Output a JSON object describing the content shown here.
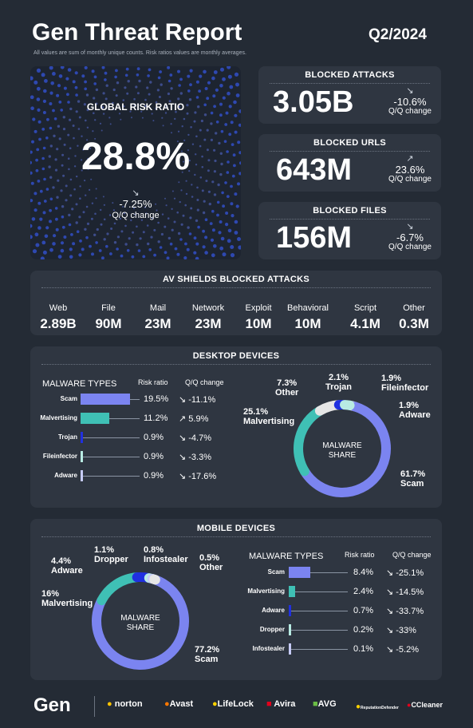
{
  "header": {
    "title": "Gen Threat Report",
    "quarter": "Q2/2024",
    "note": "All values are sum of monthly unique counts. Risk ratios values are monthly averages."
  },
  "risk": {
    "label": "GLOBAL RISK RATIO",
    "value": "28.8%",
    "change": "-7.25%",
    "change_label": "Q/Q change"
  },
  "stats": [
    {
      "label": "BLOCKED ATTACKS",
      "value": "3.05B",
      "change": "-10.6%",
      "change_label": "Q/Q change",
      "trend": "down"
    },
    {
      "label": "BLOCKED URLS",
      "value": "643M",
      "change": "23.6%",
      "change_label": "Q/Q change",
      "trend": "up"
    },
    {
      "label": "BLOCKED FILES",
      "value": "156M",
      "change": "-6.7%",
      "change_label": "Q/Q change",
      "trend": "down"
    }
  ],
  "av": {
    "title": "AV SHIELDS BLOCKED ATTACKS",
    "items": [
      {
        "name": "Web",
        "value": "2.89B"
      },
      {
        "name": "File",
        "value": "90M"
      },
      {
        "name": "Mail",
        "value": "23M"
      },
      {
        "name": "Network",
        "value": "23M"
      },
      {
        "name": "Exploit",
        "value": "10M"
      },
      {
        "name": "Behavioral",
        "value": "10M"
      },
      {
        "name": "Script",
        "value": "4.1M"
      },
      {
        "name": "Other",
        "value": "0.3M"
      }
    ]
  },
  "desktop": {
    "title": "DESKTOP DEVICES",
    "col_types": "MALWARE TYPES",
    "col_risk": "Risk ratio",
    "col_change": "Q/Q change",
    "rows": [
      {
        "name": "Scam",
        "risk": "19.5%",
        "risk_value": 19.5,
        "change": "-11.1%",
        "trend": "down",
        "color": "#7b84f0"
      },
      {
        "name": "Malvertising",
        "risk": "11.2%",
        "risk_value": 11.2,
        "change": "5.9%",
        "trend": "up",
        "color": "#3fc0b5"
      },
      {
        "name": "Trojan",
        "risk": "0.9%",
        "risk_value": 0.9,
        "change": "-4.7%",
        "trend": "down",
        "color": "#2030e0"
      },
      {
        "name": "Fileinfector",
        "risk": "0.9%",
        "risk_value": 0.9,
        "change": "-3.3%",
        "trend": "down",
        "color": "#b8ebe3"
      },
      {
        "name": "Adware",
        "risk": "0.9%",
        "risk_value": 0.9,
        "change": "-17.6%",
        "trend": "down",
        "color": "#c6cbf7"
      }
    ],
    "donut_center": [
      "MALWARE",
      "SHARE"
    ],
    "share": [
      {
        "name": "Scam",
        "pct": "61.7%",
        "value": 61.7,
        "color": "#7b84f0"
      },
      {
        "name": "Malvertising",
        "pct": "25.1%",
        "value": 25.1,
        "color": "#3fc0b5"
      },
      {
        "name": "Other",
        "pct": "7.3%",
        "value": 7.3,
        "color": "#e6e6e6"
      },
      {
        "name": "Trojan",
        "pct": "2.1%",
        "value": 2.1,
        "color": "#2030e0"
      },
      {
        "name": "Fileinfector",
        "pct": "1.9%",
        "value": 1.9,
        "color": "#b8ebe3"
      },
      {
        "name": "Adware",
        "pct": "1.9%",
        "value": 1.9,
        "color": "#c6cbf7"
      }
    ]
  },
  "mobile": {
    "title": "MOBILE DEVICES",
    "col_types": "MALWARE TYPES",
    "col_risk": "Risk ratio",
    "col_change": "Q/Q change",
    "rows": [
      {
        "name": "Scam",
        "risk": "8.4%",
        "risk_value": 8.4,
        "change": "-25.1%",
        "trend": "down",
        "color": "#7b84f0"
      },
      {
        "name": "Malvertising",
        "risk": "2.4%",
        "risk_value": 2.4,
        "change": "-14.5%",
        "trend": "down",
        "color": "#3fc0b5"
      },
      {
        "name": "Adware",
        "risk": "0.7%",
        "risk_value": 0.7,
        "change": "-33.7%",
        "trend": "down",
        "color": "#2030e0"
      },
      {
        "name": "Dropper",
        "risk": "0.2%",
        "risk_value": 0.2,
        "change": "-33%",
        "trend": "down",
        "color": "#b8ebe3"
      },
      {
        "name": "Infostealer",
        "risk": "0.1%",
        "risk_value": 0.1,
        "change": "-5.2%",
        "trend": "down",
        "color": "#c6cbf7"
      }
    ],
    "donut_center": [
      "MALWARE",
      "SHARE"
    ],
    "share": [
      {
        "name": "Scam",
        "pct": "77.2%",
        "value": 77.2,
        "color": "#7b84f0"
      },
      {
        "name": "Malvertising",
        "pct": "16%",
        "value": 16,
        "color": "#3fc0b5"
      },
      {
        "name": "Adware",
        "pct": "4.4%",
        "value": 4.4,
        "color": "#2030e0"
      },
      {
        "name": "Dropper",
        "pct": "1.1%",
        "value": 1.1,
        "color": "#b8ebe3"
      },
      {
        "name": "Infostealer",
        "pct": "0.8%",
        "value": 0.8,
        "color": "#c6cbf7"
      },
      {
        "name": "Other",
        "pct": "0.5%",
        "value": 0.5,
        "color": "#e6e6e6"
      }
    ]
  },
  "brands": [
    "Gen",
    "norton",
    "Avast",
    "LifeLock",
    "Avira",
    "AVG",
    "ReputationDefender",
    "CCleaner"
  ]
}
